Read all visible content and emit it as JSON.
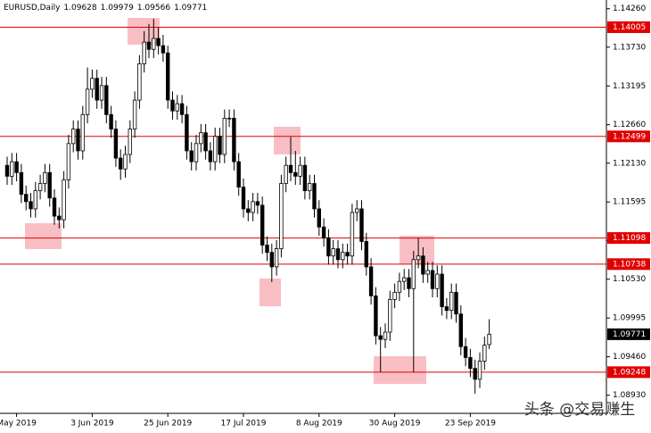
{
  "chart_data": {
    "type": "candlestick",
    "symbol": "EURUSD,Daily",
    "watermark": "头条 @交易赚生",
    "categories": [
      null,
      null,
      "May 2019",
      null,
      null,
      null,
      null,
      null,
      null,
      null,
      null,
      null,
      null,
      null,
      null,
      null,
      null,
      null,
      "3 Jun 2019",
      null,
      null,
      null,
      null,
      null,
      null,
      null,
      null,
      null,
      null,
      null,
      null,
      null,
      null,
      null,
      "25 Jun 2019",
      null,
      null,
      null,
      null,
      null,
      null,
      null,
      null,
      null,
      null,
      null,
      null,
      null,
      null,
      null,
      "17 Jul 2019",
      null,
      null,
      null,
      null,
      null,
      null,
      null,
      null,
      null,
      null,
      null,
      null,
      null,
      null,
      null,
      "8 Aug 2019",
      null,
      null,
      null,
      null,
      null,
      null,
      null,
      null,
      null,
      null,
      null,
      null,
      null,
      null,
      null,
      "30 Aug 2019",
      null,
      null,
      null,
      null,
      null,
      null,
      null,
      null,
      null,
      null,
      null,
      null,
      null,
      null,
      null,
      "23 Sep 2019",
      null,
      null,
      null,
      null
    ],
    "open": [
      1.121,
      1.1195,
      1.1215,
      1.12,
      1.117,
      1.116,
      1.115,
      1.1175,
      1.1185,
      1.12,
      1.1165,
      1.114,
      1.1135,
      1.119,
      1.124,
      1.126,
      1.123,
      1.128,
      1.1315,
      1.133,
      1.13,
      1.132,
      1.128,
      1.126,
      1.122,
      1.1205,
      1.1225,
      1.126,
      1.13,
      1.135,
      1.138,
      1.137,
      1.1385,
      1.1375,
      1.1365,
      1.13,
      1.1285,
      1.1295,
      1.128,
      1.123,
      1.1215,
      1.124,
      1.1255,
      1.123,
      1.1215,
      1.125,
      1.1225,
      1.1275,
      1.1275,
      1.1215,
      1.118,
      1.115,
      1.1145,
      1.116,
      1.1155,
      1.11,
      1.109,
      1.107,
      1.1095,
      1.1185,
      1.121,
      1.12,
      1.1195,
      1.121,
      1.1175,
      1.1185,
      1.115,
      1.1125,
      1.111,
      1.1085,
      1.1095,
      1.108,
      1.109,
      1.1085,
      1.1145,
      1.115,
      1.1105,
      1.107,
      1.103,
      1.0975,
      1.097,
      1.098,
      1.1025,
      1.1035,
      1.105,
      1.1055,
      1.104,
      1.108,
      1.1085,
      1.106,
      1.1065,
      1.104,
      1.106,
      1.1015,
      1.101,
      1.1035,
      1.1005,
      1.096,
      1.0945,
      1.093,
      1.0915,
      1.094,
      1.09628
    ],
    "high": [
      1.1222,
      1.1227,
      1.1227,
      1.1212,
      1.1182,
      1.1172,
      1.1187,
      1.1197,
      1.1212,
      1.1212,
      1.1177,
      1.1152,
      1.1202,
      1.1252,
      1.1272,
      1.1272,
      1.1292,
      1.1345,
      1.1342,
      1.1342,
      1.1332,
      1.1332,
      1.1292,
      1.1272,
      1.1232,
      1.1237,
      1.1272,
      1.1312,
      1.1362,
      1.1395,
      1.1405,
      1.1412,
      1.14,
      1.139,
      1.1375,
      1.1312,
      1.1307,
      1.1307,
      1.1292,
      1.1242,
      1.1252,
      1.1267,
      1.1267,
      1.1242,
      1.1262,
      1.1262,
      1.1287,
      1.1287,
      1.1287,
      1.1227,
      1.1192,
      1.1162,
      1.1172,
      1.1172,
      1.1167,
      1.1112,
      1.1102,
      1.1107,
      1.1197,
      1.1222,
      1.1249,
      1.123,
      1.1222,
      1.1222,
      1.1197,
      1.1197,
      1.1162,
      1.1137,
      1.1122,
      1.1107,
      1.1107,
      1.1102,
      1.1102,
      1.1157,
      1.1162,
      1.1162,
      1.1117,
      1.1082,
      1.1042,
      1.0987,
      1.0992,
      1.1037,
      1.1047,
      1.1062,
      1.1067,
      1.1067,
      1.1092,
      1.111,
      1.1097,
      1.1077,
      1.1077,
      1.1072,
      1.1072,
      1.1027,
      1.1047,
      1.1047,
      1.1017,
      1.0972,
      1.0957,
      1.0942,
      1.0952,
      1.0974,
      1.09979
    ],
    "low": [
      1.1183,
      1.1183,
      1.1188,
      1.1158,
      1.1148,
      1.1138,
      1.1138,
      1.1163,
      1.1173,
      1.1153,
      1.1128,
      1.1123,
      1.1123,
      1.1178,
      1.1228,
      1.1218,
      1.1218,
      1.1268,
      1.1303,
      1.1288,
      1.1288,
      1.1268,
      1.1248,
      1.1208,
      1.119,
      1.1193,
      1.1213,
      1.1248,
      1.1288,
      1.1338,
      1.1358,
      1.1358,
      1.1363,
      1.1353,
      1.1288,
      1.1273,
      1.1273,
      1.1268,
      1.1218,
      1.1203,
      1.1203,
      1.1228,
      1.1218,
      1.1203,
      1.1203,
      1.1213,
      1.1213,
      1.1263,
      1.1203,
      1.1168,
      1.1138,
      1.1133,
      1.1133,
      1.1143,
      1.1088,
      1.1078,
      1.1049,
      1.1058,
      1.1083,
      1.1173,
      1.1188,
      1.1183,
      1.1183,
      1.1163,
      1.1163,
      1.1138,
      1.1113,
      1.1098,
      1.1073,
      1.1073,
      1.1068,
      1.1068,
      1.1073,
      1.1073,
      1.1133,
      1.1093,
      1.1058,
      1.1018,
      1.0963,
      1.0925,
      1.0958,
      1.0968,
      1.1013,
      1.1023,
      1.1038,
      1.1028,
      1.0925,
      1.1068,
      1.1048,
      1.1048,
      1.1028,
      1.1028,
      1.1003,
      1.0998,
      1.0998,
      1.0993,
      1.0948,
      1.0933,
      1.0918,
      1.0895,
      1.0903,
      1.0928,
      1.09566
    ],
    "close": [
      1.1195,
      1.1215,
      1.12,
      1.117,
      1.116,
      1.115,
      1.1175,
      1.1185,
      1.12,
      1.1165,
      1.114,
      1.1135,
      1.119,
      1.124,
      1.126,
      1.123,
      1.128,
      1.1315,
      1.133,
      1.13,
      1.132,
      1.128,
      1.126,
      1.122,
      1.1205,
      1.1225,
      1.126,
      1.13,
      1.135,
      1.138,
      1.137,
      1.1385,
      1.1375,
      1.1365,
      1.13,
      1.1285,
      1.1295,
      1.128,
      1.123,
      1.1215,
      1.124,
      1.1255,
      1.123,
      1.1215,
      1.125,
      1.1225,
      1.1275,
      1.1275,
      1.1215,
      1.118,
      1.115,
      1.1145,
      1.116,
      1.1155,
      1.11,
      1.109,
      1.107,
      1.1095,
      1.1185,
      1.121,
      1.12,
      1.1195,
      1.121,
      1.1175,
      1.1185,
      1.115,
      1.1125,
      1.111,
      1.1085,
      1.1095,
      1.108,
      1.109,
      1.1085,
      1.1145,
      1.115,
      1.1105,
      1.107,
      1.103,
      1.0975,
      1.097,
      1.098,
      1.1025,
      1.1035,
      1.105,
      1.1055,
      1.104,
      1.108,
      1.1085,
      1.106,
      1.1065,
      1.104,
      1.106,
      1.1015,
      1.101,
      1.1035,
      1.1005,
      1.096,
      1.0945,
      1.093,
      1.0915,
      1.094,
      1.0962,
      1.09771
    ],
    "levels": [
      1.14005,
      1.12499,
      1.11098,
      1.10738,
      1.09248
    ],
    "level_color": "#e00000",
    "up_color": "#ffffff",
    "down_color": "#000000",
    "ylim": [
      1.0868,
      1.1438
    ],
    "yticks": [
      {
        "value": 1.1426,
        "label": "1.14260"
      },
      {
        "value": 1.1373,
        "label": "1.13730"
      },
      1.13195,
      {
        "value": 1.1266,
        "label": "1.12660"
      },
      {
        "value": 1.1213,
        "label": "1.12130"
      },
      1.11595,
      1.11065,
      {
        "value": 1.1053,
        "label": "1.10530"
      },
      1.09995,
      {
        "value": 1.0946,
        "label": "1.09460"
      },
      {
        "value": 1.0893,
        "label": "1.08930"
      }
    ]
  }
}
